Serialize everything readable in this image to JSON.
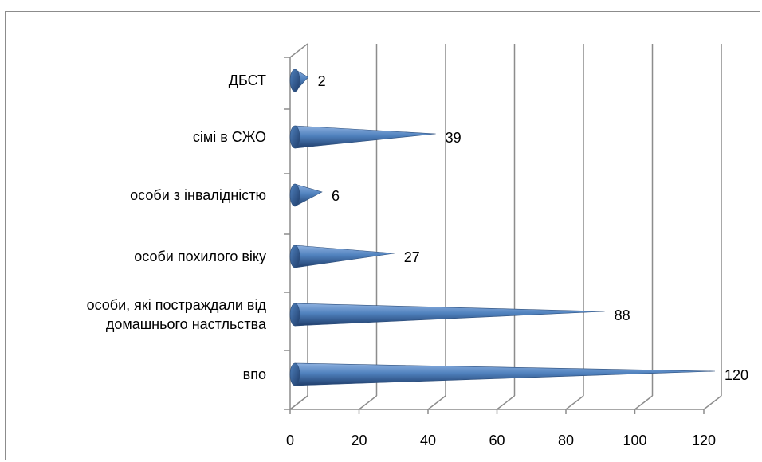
{
  "chart_data": {
    "type": "bar",
    "orientation": "horizontal",
    "style": "3d-cone",
    "categories": [
      "ДБСТ",
      "сімі в СЖО",
      "особи з інвалідністю",
      "особи похилого віку",
      "особи, які постраждали від домашнього настльства",
      "впо"
    ],
    "category_lines": [
      [
        "ДБСТ"
      ],
      [
        "сімі в СЖО"
      ],
      [
        "особи з інвалідністю"
      ],
      [
        "особи похилого віку"
      ],
      [
        "особи, які постраждали від",
        "домашнього настльства"
      ],
      [
        "впо"
      ]
    ],
    "values": [
      2,
      39,
      6,
      27,
      88,
      120
    ],
    "data_labels": [
      "2",
      "39",
      "6",
      "27",
      "88",
      "120"
    ],
    "xlim": [
      0,
      120
    ],
    "xticks": [
      0,
      20,
      40,
      60,
      80,
      100,
      120
    ],
    "xtick_labels": [
      "0",
      "20",
      "40",
      "60",
      "80",
      "100",
      "120"
    ],
    "grid": true,
    "title": "",
    "xlabel": "",
    "ylabel": "",
    "colors": {
      "bar_light": "#8fb1e0",
      "bar_mid": "#4f81bd",
      "bar_dark": "#1f3d6b",
      "grid": "#8c8c8c"
    }
  }
}
